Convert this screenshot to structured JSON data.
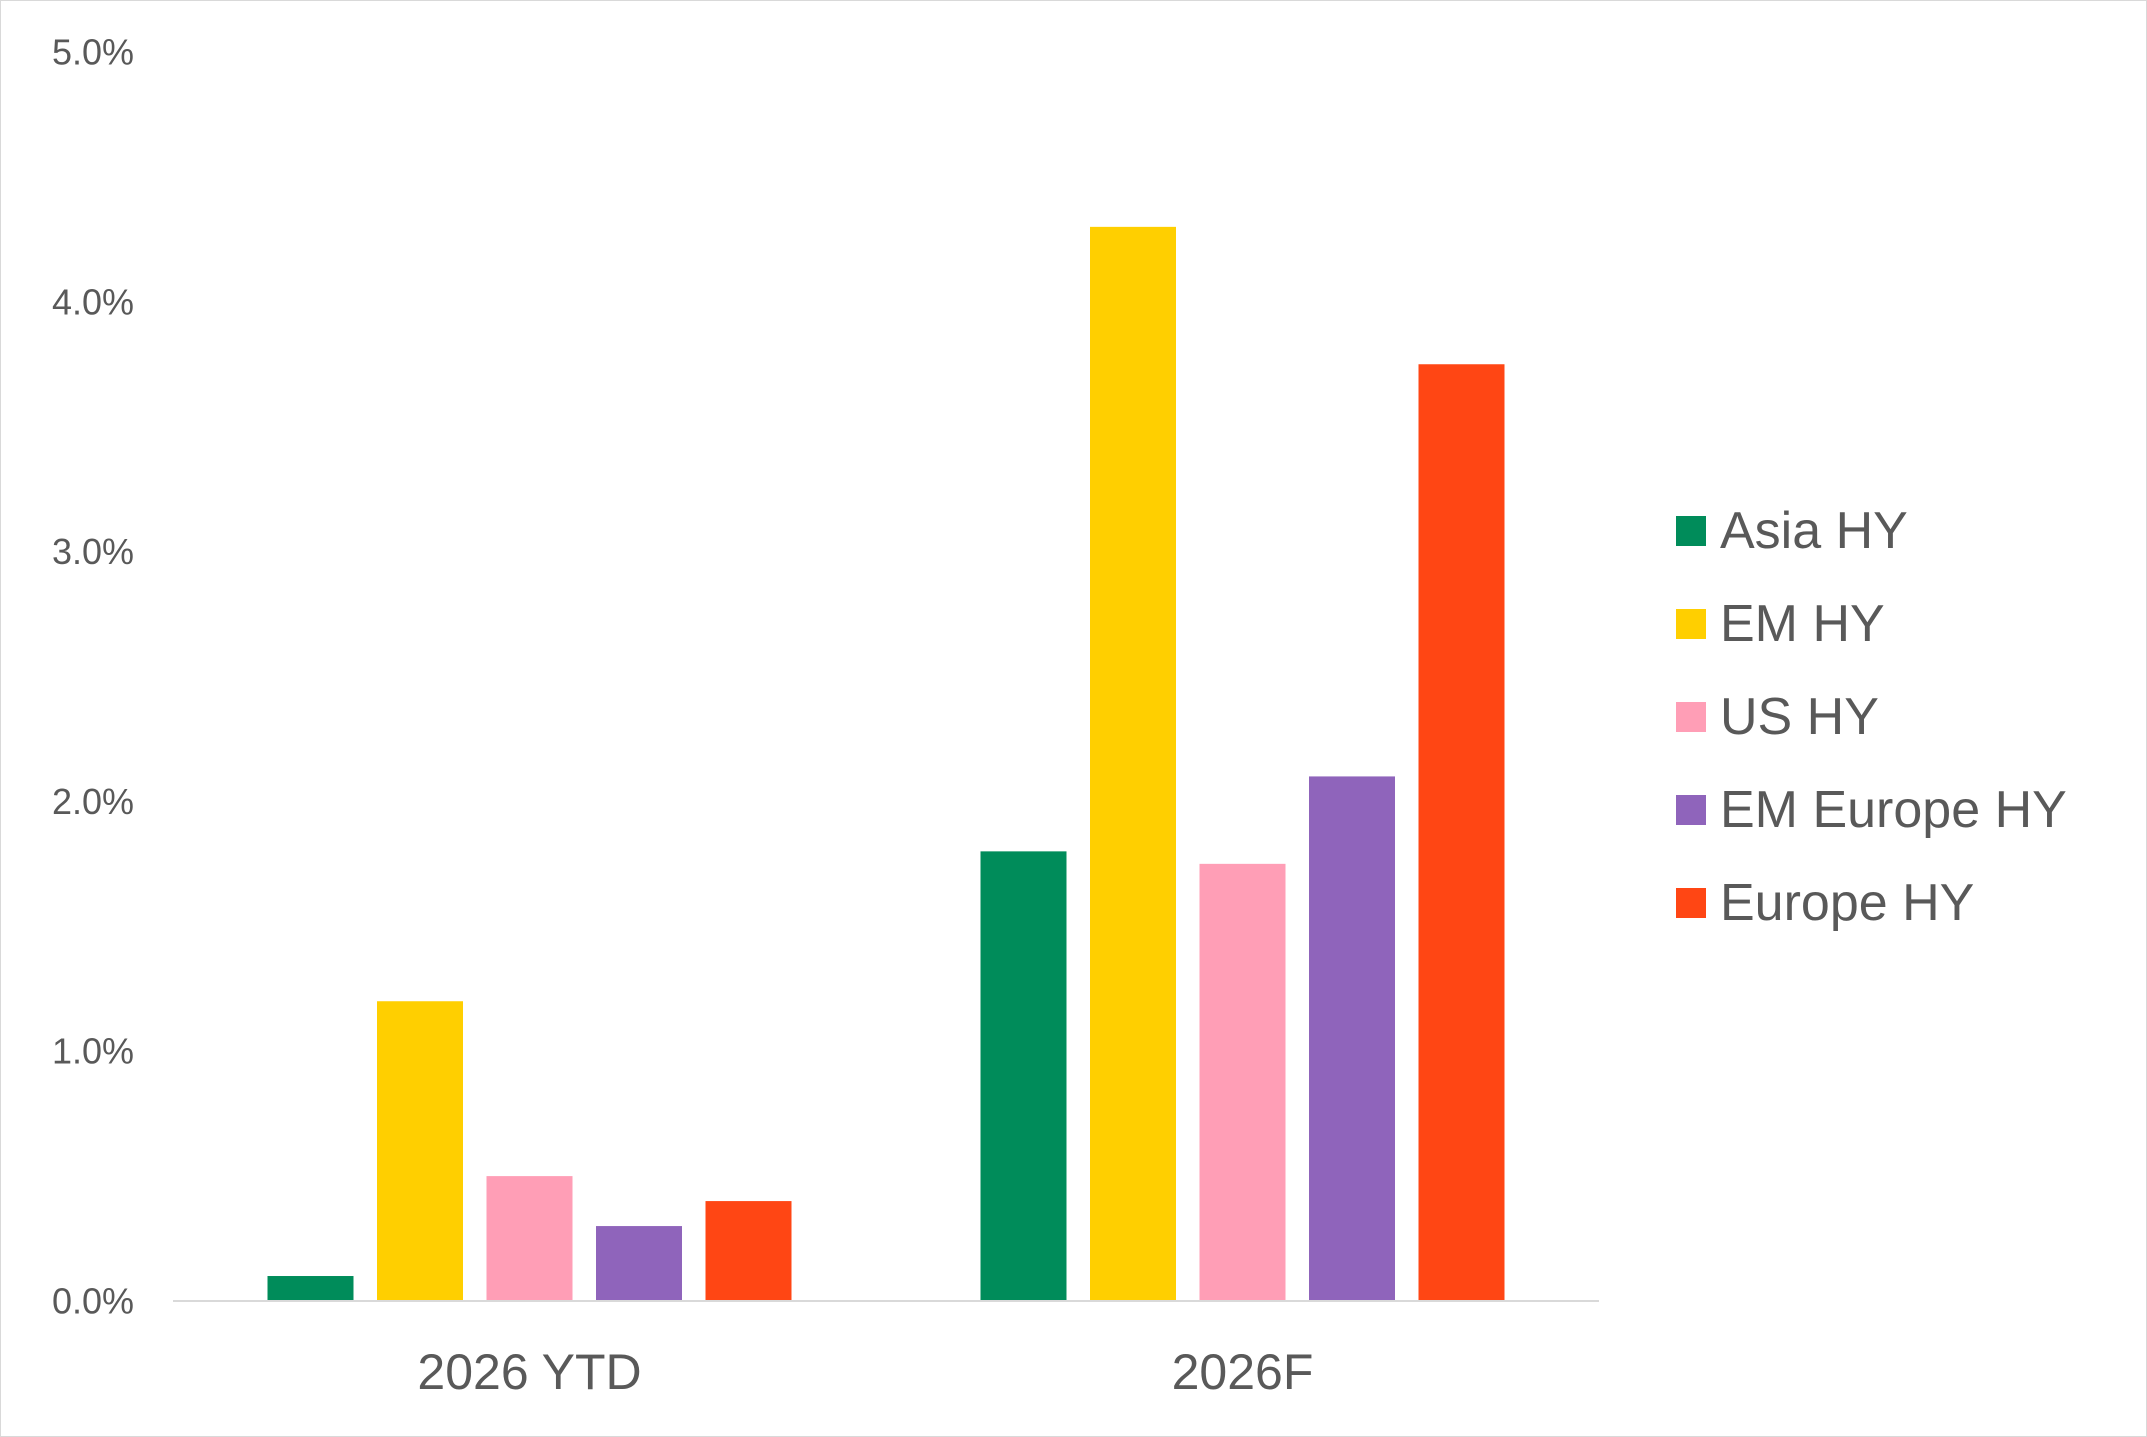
{
  "chart_data": {
    "type": "bar",
    "categories": [
      "2026 YTD",
      "2026F"
    ],
    "series": [
      {
        "name": "Asia HY",
        "color": "#008c5a",
        "values": [
          0.1,
          1.8
        ]
      },
      {
        "name": "EM HY",
        "color": "#ffcf00",
        "values": [
          1.2,
          4.3
        ]
      },
      {
        "name": "US HY",
        "color": "#ff9eb6",
        "values": [
          0.5,
          1.75
        ]
      },
      {
        "name": "EM Europe HY",
        "color": "#8f64bb",
        "values": [
          0.3,
          2.1
        ]
      },
      {
        "name": "Europe HY",
        "color": "#ff4614",
        "values": [
          0.4,
          3.75
        ]
      }
    ],
    "y_ticks": [
      "0.0%",
      "1.0%",
      "2.0%",
      "3.0%",
      "4.0%",
      "5.0%"
    ],
    "ylim": [
      0,
      5
    ],
    "title": "",
    "xlabel": "",
    "ylabel": "",
    "grid": false,
    "legend_position": "right"
  }
}
